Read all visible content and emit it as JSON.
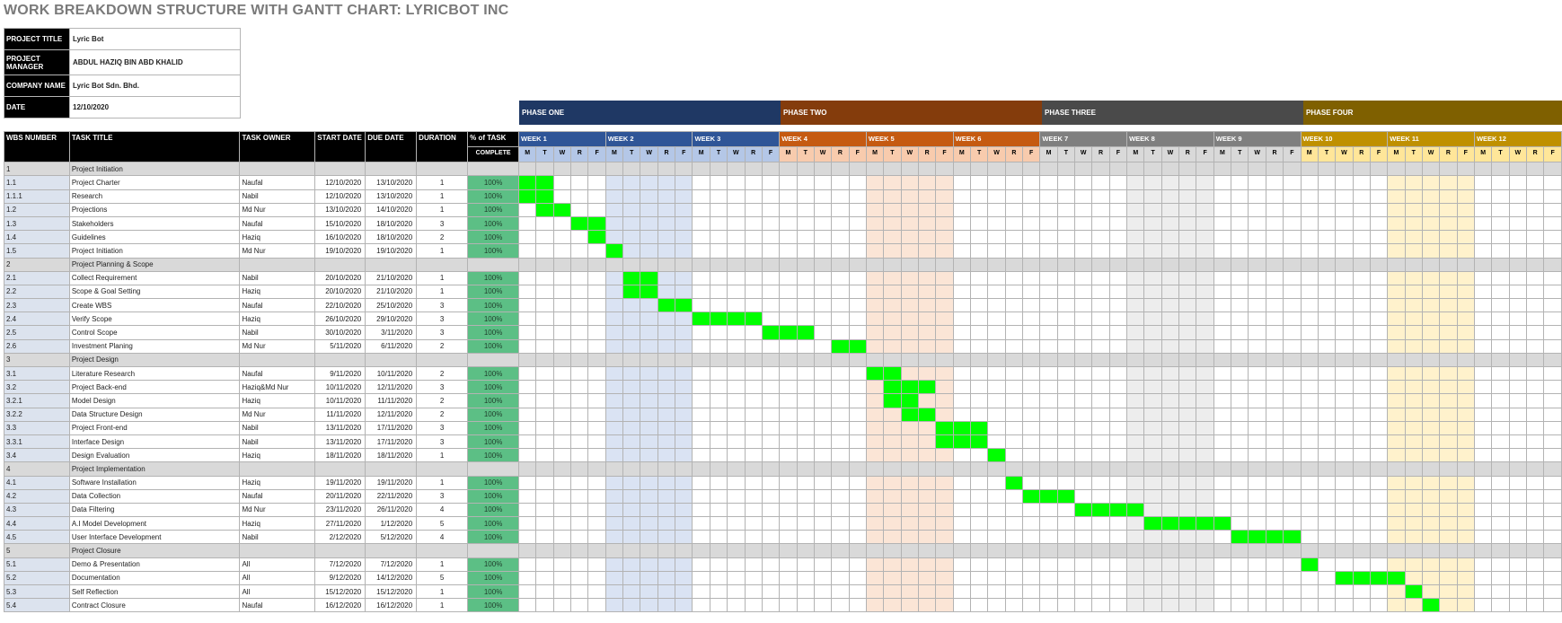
{
  "title": "WORK BREAKDOWN STRUCTURE WITH GANTT CHART: LYRICBOT INC",
  "info": [
    {
      "label": "PROJECT TITLE",
      "value": "Lyric Bot"
    },
    {
      "label": "PROJECT MANAGER",
      "value": "ABDUL HAZIQ BIN ABD KHALID"
    },
    {
      "label": "COMPANY NAME",
      "value": "Lyric Bot Sdn. Bhd."
    },
    {
      "label": "DATE",
      "value": "12/10/2020"
    }
  ],
  "headers": {
    "wbs": "WBS NUMBER",
    "task": "TASK TITLE",
    "owner": "TASK OWNER",
    "start": "START DATE",
    "due": "DUE DATE",
    "duration": "DURATION",
    "pct_line1": "% of TASK",
    "pct_line2": "COMPLETE"
  },
  "phases": [
    {
      "name": "PHASE ONE",
      "color": "#1f3864"
    },
    {
      "name": "PHASE TWO",
      "color": "#843c0c"
    },
    {
      "name": "PHASE THREE",
      "color": "#4a4a4a"
    },
    {
      "name": "PHASE FOUR",
      "color": "#7f6000"
    }
  ],
  "weeks": [
    {
      "label": "WEEK 1",
      "color": "#2f5597",
      "day_bg": "#b4c7e7"
    },
    {
      "label": "WEEK 2",
      "color": "#2f5597",
      "day_bg": "#b4c7e7"
    },
    {
      "label": "WEEK 3",
      "color": "#2f5597",
      "day_bg": "#b4c7e7"
    },
    {
      "label": "WEEK 4",
      "color": "#c55a11",
      "day_bg": "#f8cbad"
    },
    {
      "label": "WEEK 5",
      "color": "#c55a11",
      "day_bg": "#f8cbad"
    },
    {
      "label": "WEEK 6",
      "color": "#c55a11",
      "day_bg": "#f8cbad"
    },
    {
      "label": "WEEK 7",
      "color": "#7f7f7f",
      "day_bg": "#d9d9d9"
    },
    {
      "label": "WEEK 8",
      "color": "#7f7f7f",
      "day_bg": "#d9d9d9"
    },
    {
      "label": "WEEK 9",
      "color": "#7f7f7f",
      "day_bg": "#d9d9d9"
    },
    {
      "label": "WEEK 10",
      "color": "#bf9000",
      "day_bg": "#ffe699"
    },
    {
      "label": "WEEK 11",
      "color": "#bf9000",
      "day_bg": "#ffe699"
    },
    {
      "label": "WEEK 12",
      "color": "#bf9000",
      "day_bg": "#ffe699"
    }
  ],
  "days": [
    "M",
    "T",
    "W",
    "R",
    "F"
  ],
  "rows": [
    {
      "wbs": "1",
      "title": "Project Initiation",
      "phase": true
    },
    {
      "wbs": "1.1",
      "title": "Project Charter",
      "owner": "Naufal",
      "start": "12/10/2020",
      "due": "13/10/2020",
      "duration": "1",
      "pct": "100%",
      "bar": [
        0,
        2
      ]
    },
    {
      "wbs": "1.1.1",
      "title": "Research",
      "owner": "Nabil",
      "start": "12/10/2020",
      "due": "13/10/2020",
      "duration": "1",
      "pct": "100%",
      "bar": [
        0,
        2
      ]
    },
    {
      "wbs": "1.2",
      "title": "Projections",
      "owner": "Md Nur",
      "start": "13/10/2020",
      "due": "14/10/2020",
      "duration": "1",
      "pct": "100%",
      "bar": [
        1,
        2
      ]
    },
    {
      "wbs": "1.3",
      "title": "Stakeholders",
      "owner": "Naufal",
      "start": "15/10/2020",
      "due": "18/10/2020",
      "duration": "3",
      "pct": "100%",
      "bar": [
        3,
        2
      ]
    },
    {
      "wbs": "1.4",
      "title": "Guidelines",
      "owner": "Haziq",
      "start": "16/10/2020",
      "due": "18/10/2020",
      "duration": "2",
      "pct": "100%",
      "bar": [
        4,
        1
      ]
    },
    {
      "wbs": "1.5",
      "title": "Project Initiation",
      "owner": "Md Nur",
      "start": "19/10/2020",
      "due": "19/10/2020",
      "duration": "1",
      "pct": "100%",
      "bar": [
        5,
        1
      ]
    },
    {
      "wbs": "2",
      "title": "Project Planning & Scope",
      "phase": true
    },
    {
      "wbs": "2.1",
      "title": "Collect Requirement",
      "owner": "Nabil",
      "start": "20/10/2020",
      "due": "21/10/2020",
      "duration": "1",
      "pct": "100%",
      "bar": [
        6,
        2
      ]
    },
    {
      "wbs": "2.2",
      "title": "Scope & Goal Setting",
      "owner": "Haziq",
      "start": "20/10/2020",
      "due": "21/10/2020",
      "duration": "1",
      "pct": "100%",
      "bar": [
        6,
        2
      ]
    },
    {
      "wbs": "2.3",
      "title": "Create WBS",
      "owner": "Naufal",
      "start": "22/10/2020",
      "due": "25/10/2020",
      "duration": "3",
      "pct": "100%",
      "bar": [
        8,
        2
      ]
    },
    {
      "wbs": "2.4",
      "title": "Verify Scope",
      "owner": "Haziq",
      "start": "26/10/2020",
      "due": "29/10/2020",
      "duration": "3",
      "pct": "100%",
      "bar": [
        10,
        4
      ]
    },
    {
      "wbs": "2.5",
      "title": "Control Scope",
      "owner": "Nabil",
      "start": "30/10/2020",
      "due": "3/11/2020",
      "duration": "3",
      "pct": "100%",
      "bar": [
        14,
        3
      ]
    },
    {
      "wbs": "2.6",
      "title": "Investment Planing",
      "owner": "Md Nur",
      "start": "5/11/2020",
      "due": "6/11/2020",
      "duration": "2",
      "pct": "100%",
      "bar": [
        18,
        2
      ]
    },
    {
      "wbs": "3",
      "title": "Project Design",
      "phase": true
    },
    {
      "wbs": "3.1",
      "title": "Literature Research",
      "owner": "Naufal",
      "start": "9/11/2020",
      "due": "10/11/2020",
      "duration": "2",
      "pct": "100%",
      "bar": [
        20,
        2
      ]
    },
    {
      "wbs": "3.2",
      "title": "Project Back-end",
      "owner": "Haziq&Md Nur",
      "start": "10/11/2020",
      "due": "12/11/2020",
      "duration": "3",
      "pct": "100%",
      "bar": [
        21,
        3
      ]
    },
    {
      "wbs": "3.2.1",
      "title": "Model Design",
      "owner": "Haziq",
      "start": "10/11/2020",
      "due": "11/11/2020",
      "duration": "2",
      "pct": "100%",
      "bar": [
        21,
        2
      ]
    },
    {
      "wbs": "3.2.2",
      "title": "Data Structure Design",
      "owner": "Md Nur",
      "start": "11/11/2020",
      "due": "12/11/2020",
      "duration": "2",
      "pct": "100%",
      "bar": [
        22,
        2
      ]
    },
    {
      "wbs": "3.3",
      "title": "Project Front-end",
      "owner": "Nabil",
      "start": "13/11/2020",
      "due": "17/11/2020",
      "duration": "3",
      "pct": "100%",
      "bar": [
        24,
        3
      ]
    },
    {
      "wbs": "3.3.1",
      "title": "Interface Design",
      "owner": "Nabil",
      "start": "13/11/2020",
      "due": "17/11/2020",
      "duration": "3",
      "pct": "100%",
      "bar": [
        24,
        3
      ]
    },
    {
      "wbs": "3.4",
      "title": "Design Evaluation",
      "owner": "Haziq",
      "start": "18/11/2020",
      "due": "18/11/2020",
      "duration": "1",
      "pct": "100%",
      "bar": [
        27,
        1
      ]
    },
    {
      "wbs": "4",
      "title": "Project Implementation",
      "phase": true
    },
    {
      "wbs": "4.1",
      "title": "Software Installation",
      "owner": "Haziq",
      "start": "19/11/2020",
      "due": "19/11/2020",
      "duration": "1",
      "pct": "100%",
      "bar": [
        28,
        1
      ]
    },
    {
      "wbs": "4.2",
      "title": "Data Collection",
      "owner": "Naufal",
      "start": "20/11/2020",
      "due": "22/11/2020",
      "duration": "3",
      "pct": "100%",
      "bar": [
        29,
        3
      ]
    },
    {
      "wbs": "4.3",
      "title": "Data Filtering",
      "owner": "Md Nur",
      "start": "23/11/2020",
      "due": "26/11/2020",
      "duration": "4",
      "pct": "100%",
      "bar": [
        32,
        4
      ]
    },
    {
      "wbs": "4.4",
      "title": "A.I Model Development",
      "owner": "Haziq",
      "start": "27/11/2020",
      "due": "1/12/2020",
      "duration": "5",
      "pct": "100%",
      "bar": [
        36,
        5
      ]
    },
    {
      "wbs": "4.5",
      "title": "User Interface Development",
      "owner": "Nabil",
      "start": "2/12/2020",
      "due": "5/12/2020",
      "duration": "4",
      "pct": "100%",
      "bar": [
        41,
        4
      ]
    },
    {
      "wbs": "5",
      "title": "Project Closure",
      "phase": true
    },
    {
      "wbs": "5.1",
      "title": "Demo & Presentation",
      "owner": "All",
      "start": "7/12/2020",
      "due": "7/12/2020",
      "duration": "1",
      "pct": "100%",
      "bar": [
        45,
        1
      ]
    },
    {
      "wbs": "5.2",
      "title": "Documentation",
      "owner": "All",
      "start": "9/12/2020",
      "due": "14/12/2020",
      "duration": "5",
      "pct": "100%",
      "bar": [
        47,
        4
      ]
    },
    {
      "wbs": "5.3",
      "title": "Self Reflection",
      "owner": "All",
      "start": "15/12/2020",
      "due": "15/12/2020",
      "duration": "1",
      "pct": "100%",
      "bar": [
        51,
        1
      ]
    },
    {
      "wbs": "5.4",
      "title": "Contract Closure",
      "owner": "Naufal",
      "start": "16/12/2020",
      "due": "16/12/2020",
      "duration": "1",
      "pct": "100%",
      "bar": [
        52,
        1
      ]
    }
  ],
  "bar_color": "#00ff00"
}
